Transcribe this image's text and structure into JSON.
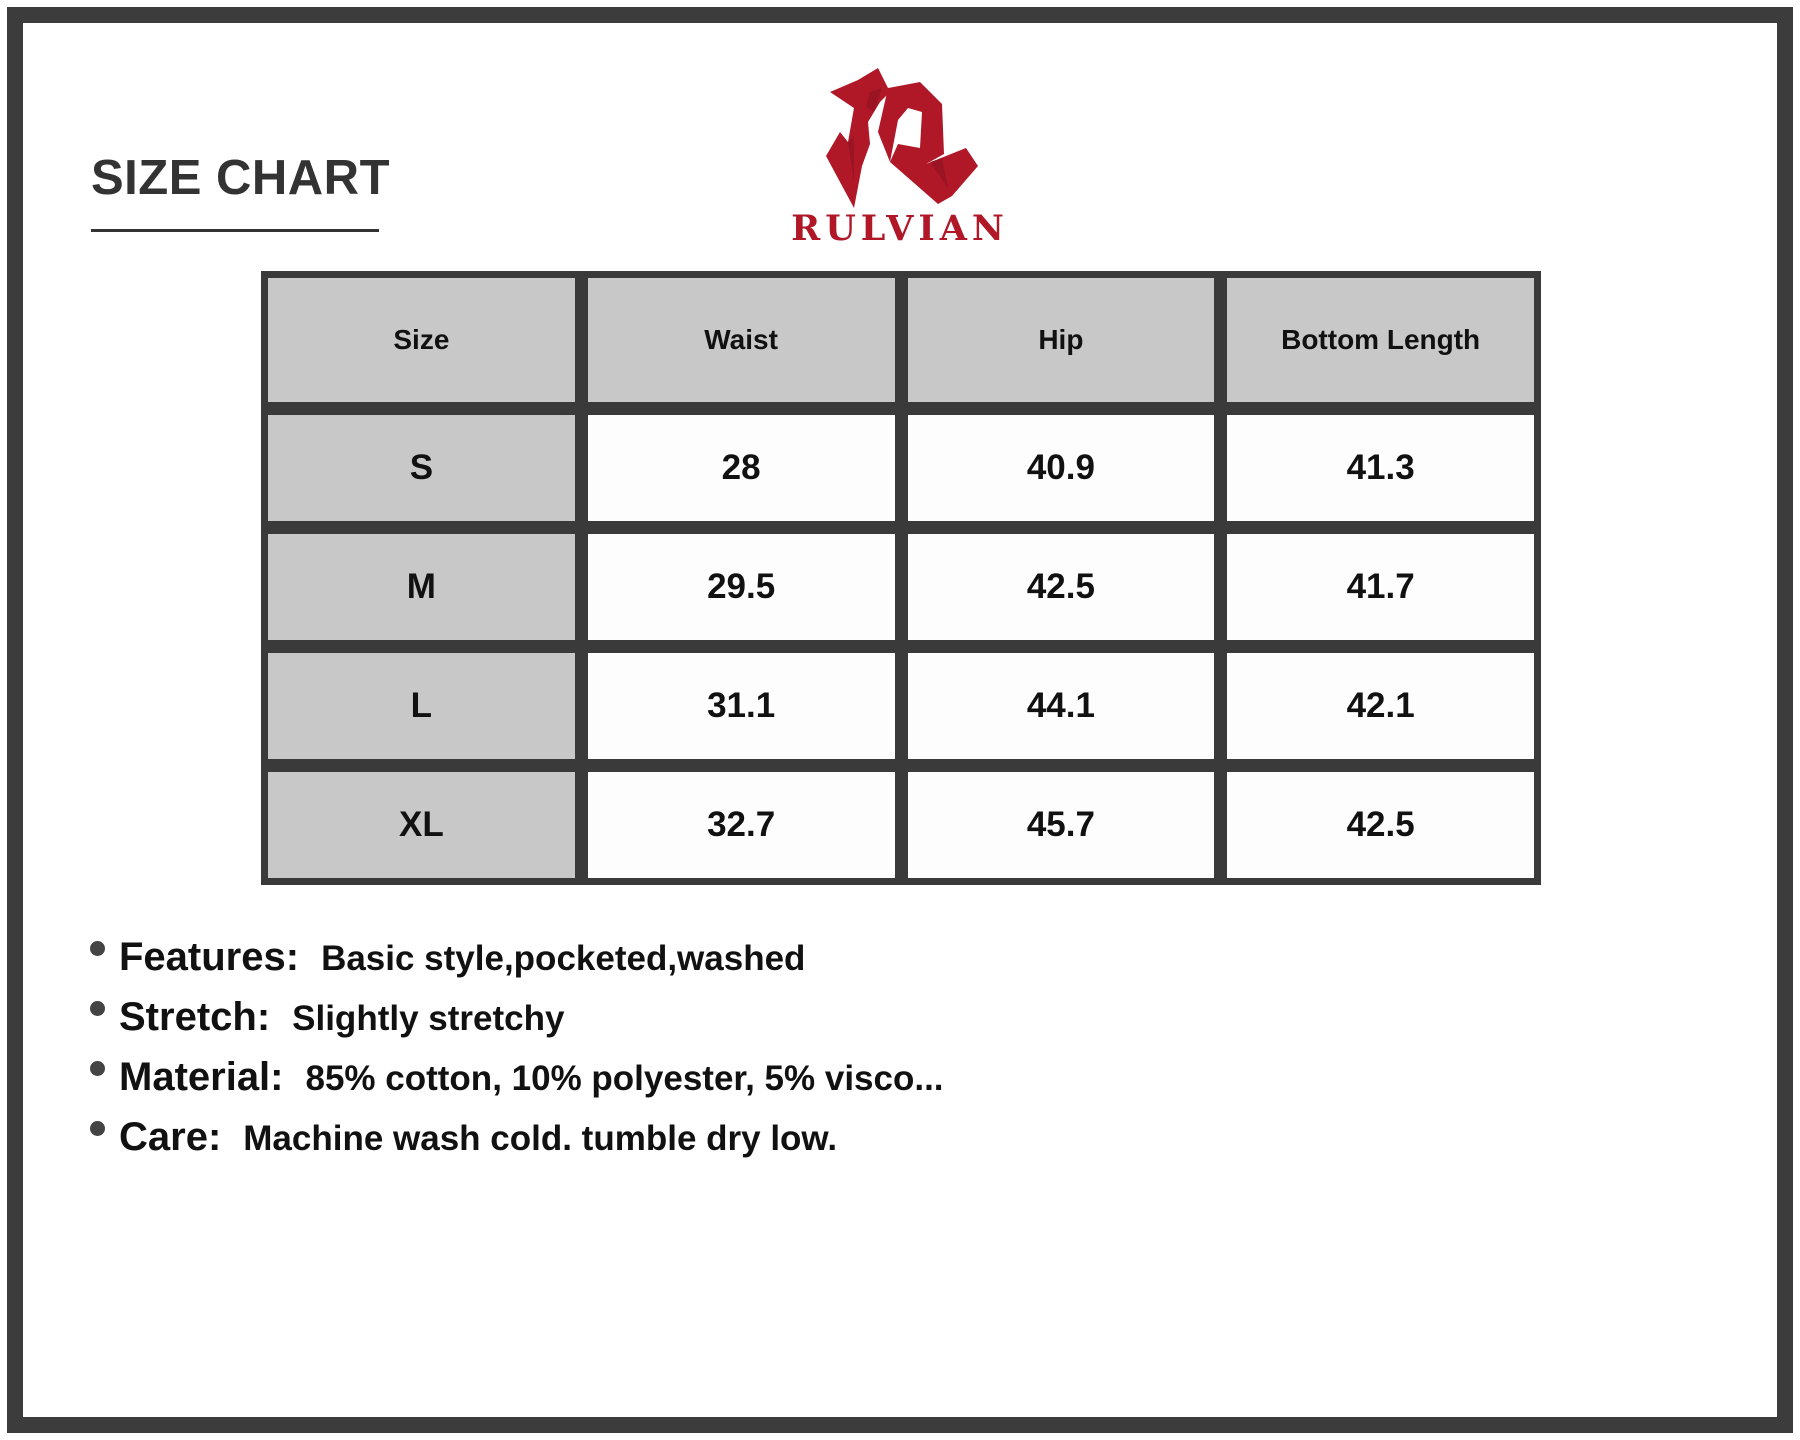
{
  "title": "SIZE CHART",
  "brand": {
    "name": "RULVIAN",
    "color": "#b01828"
  },
  "table": {
    "headers": [
      "Size",
      "Waist",
      "Hip",
      "Bottom Length"
    ],
    "rows": [
      [
        "S",
        "28",
        "40.9",
        "41.3"
      ],
      [
        "M",
        "29.5",
        "42.5",
        "41.7"
      ],
      [
        "L",
        "31.1",
        "44.1",
        "42.1"
      ],
      [
        "XL",
        "32.7",
        "45.7",
        "42.5"
      ]
    ]
  },
  "notes": [
    {
      "label": "Features:",
      "value": "Basic style,pocketed,washed"
    },
    {
      "label": "Stretch:",
      "value": "Slightly stretchy"
    },
    {
      "label": "Material:",
      "value": "85% cotton, 10% polyester, 5% visco..."
    },
    {
      "label": "Care:",
      "value": "Machine wash cold. tumble dry low."
    }
  ]
}
